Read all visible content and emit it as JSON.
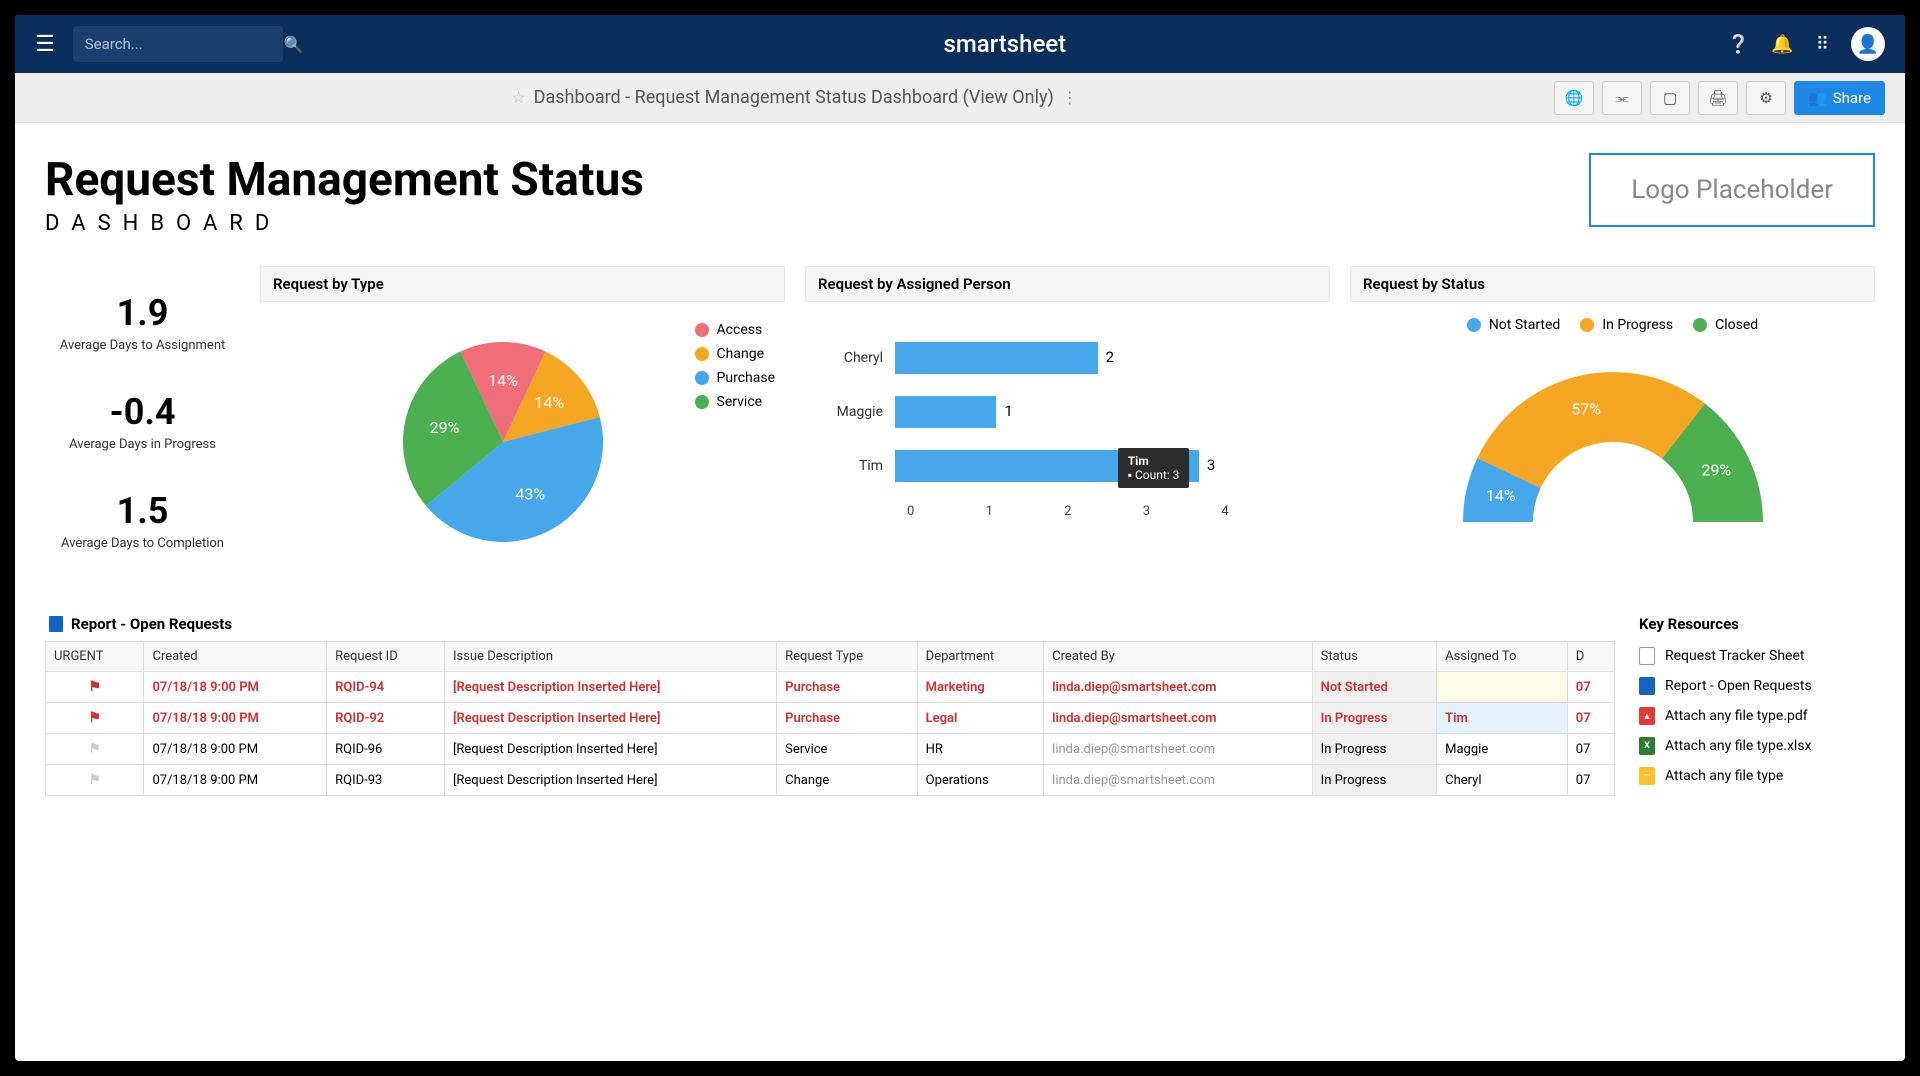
{
  "topbar": {
    "search_placeholder": "Search...",
    "brand": "smartsheet"
  },
  "titlebar": {
    "title": "Dashboard - Request Management Status Dashboard (View Only)",
    "share_label": "Share"
  },
  "header": {
    "title": "Request Management Status",
    "subtitle": "DASHBOARD",
    "logo_text": "Logo Placeholder"
  },
  "metrics": [
    {
      "value": "1.9",
      "label": "Average Days to Assignment"
    },
    {
      "value": "-0.4",
      "label": "Average Days in Progress"
    },
    {
      "value": "1.5",
      "label": "Average Days to Completion"
    }
  ],
  "pie": {
    "title": "Request by Type",
    "slices": [
      {
        "label": "Access",
        "value": 14,
        "color": "#f06e7a"
      },
      {
        "label": "Change",
        "value": 14,
        "color": "#f5a623"
      },
      {
        "label": "Purchase",
        "value": 43,
        "color": "#46a7ea"
      },
      {
        "label": "Service",
        "value": 29,
        "color": "#4caf50"
      }
    ]
  },
  "bars": {
    "title": "Request by Assigned Person",
    "max": 4,
    "ticks": [
      "0",
      "1",
      "2",
      "3",
      "4"
    ],
    "data": [
      {
        "label": "Cheryl",
        "value": 2
      },
      {
        "label": "Maggie",
        "value": 1
      },
      {
        "label": "Tim",
        "value": 3
      }
    ],
    "tooltip": {
      "name": "Tim",
      "count_label": "Count: 3"
    },
    "bar_color": "#46a7ea"
  },
  "donut": {
    "title": "Request by Status",
    "slices": [
      {
        "label": "Not Started",
        "value": 14,
        "color": "#46a7ea"
      },
      {
        "label": "In Progress",
        "value": 57,
        "color": "#f5a623"
      },
      {
        "label": "Closed",
        "value": 29,
        "color": "#4caf50"
      }
    ]
  },
  "report": {
    "title": "Report - Open Requests",
    "columns": [
      "URGENT",
      "Created",
      "Request ID",
      "Issue Description",
      "Request Type",
      "Department",
      "Created By",
      "Status",
      "Assigned To",
      "D"
    ],
    "rows": [
      {
        "urgent": true,
        "created": "07/18/18 9:00 PM",
        "id": "RQID-94",
        "desc": "[Request Description Inserted Here]",
        "type": "Purchase",
        "dept": "Marketing",
        "by": "linda.diep@smartsheet.com",
        "status": "Not Started",
        "assigned": "",
        "d": "07"
      },
      {
        "urgent": true,
        "created": "07/18/18 9:00 PM",
        "id": "RQID-92",
        "desc": "[Request Description Inserted Here]",
        "type": "Purchase",
        "dept": "Legal",
        "by": "linda.diep@smartsheet.com",
        "status": "In Progress",
        "assigned": "Tim",
        "d": "07"
      },
      {
        "urgent": false,
        "created": "07/18/18 9:00 PM",
        "id": "RQID-96",
        "desc": "[Request Description Inserted Here]",
        "type": "Service",
        "dept": "HR",
        "by": "linda.diep@smartsheet.com",
        "status": "In Progress",
        "assigned": "Maggie",
        "d": "07"
      },
      {
        "urgent": false,
        "created": "07/18/18 9:00 PM",
        "id": "RQID-93",
        "desc": "[Request Description Inserted Here]",
        "type": "Change",
        "dept": "Operations",
        "by": "linda.diep@smartsheet.com",
        "status": "In Progress",
        "assigned": "Cheryl",
        "d": "07"
      }
    ]
  },
  "resources": {
    "title": "Key Resources",
    "items": [
      {
        "label": "Request Tracker Sheet",
        "icon_bg": "#fff",
        "icon_border": "#999",
        "icon_text": ""
      },
      {
        "label": "Report - Open Requests",
        "icon_bg": "#1565c0",
        "icon_text": ""
      },
      {
        "label": "Attach any file type.pdf",
        "icon_bg": "#e53935",
        "icon_text": "▲"
      },
      {
        "label": "Attach any file type.xlsx",
        "icon_bg": "#2e7d32",
        "icon_text": "X"
      },
      {
        "label": "Attach any file type",
        "icon_bg": "#fbc02d",
        "icon_text": "—"
      }
    ]
  }
}
